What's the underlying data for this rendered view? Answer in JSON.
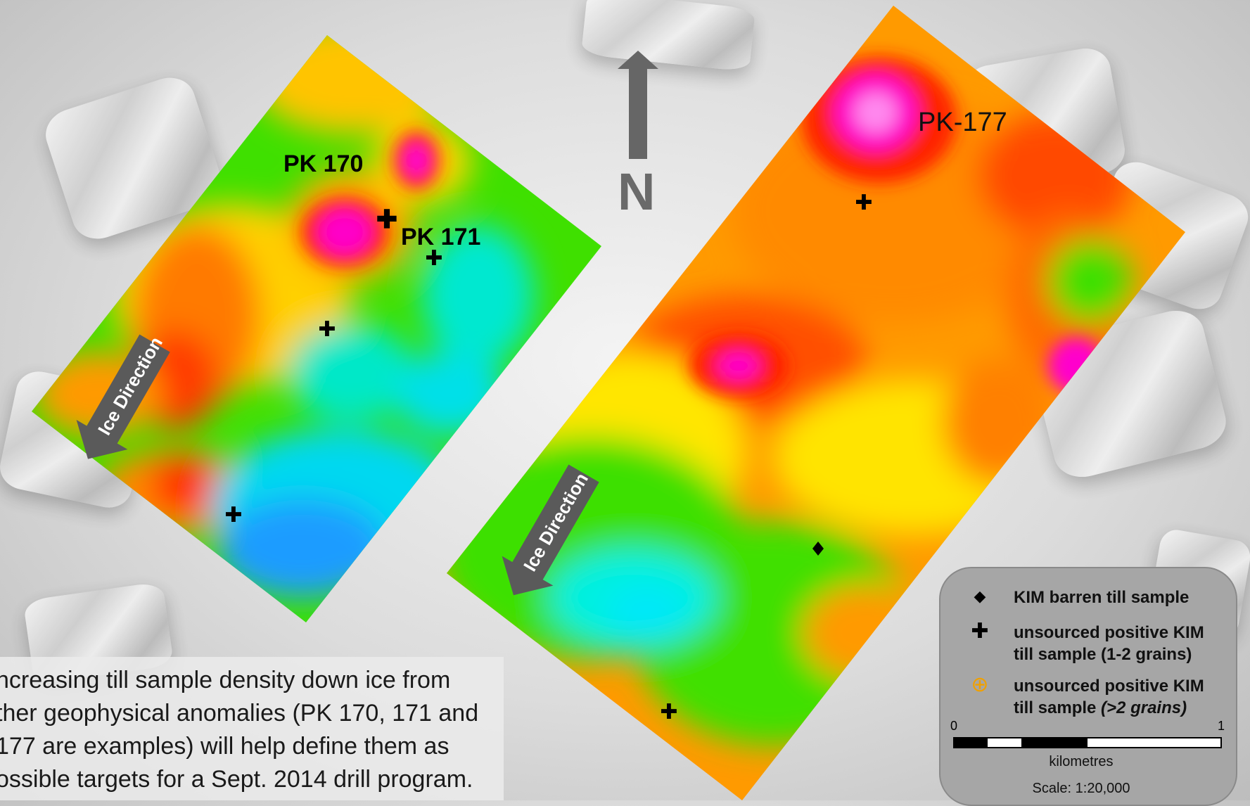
{
  "labels": {
    "pk170": "PK 170",
    "pk171": "PK 171",
    "pk177": "PK-177",
    "north": "N",
    "ice_direction": "Ice Direction"
  },
  "caption": {
    "lines": [
      "ncreasing  till sample density down ice from",
      "ther geophysical anomalies (PK 170, 171 and",
      " 177 are examples) will help define them as",
      "ossible targets for a Sept. 2014 drill program."
    ]
  },
  "legend": {
    "items": [
      {
        "symbol": "diamond-icon",
        "text_lines": [
          "KIM barren till sample"
        ]
      },
      {
        "symbol": "plus-icon",
        "text_lines": [
          "unsourced positive KIM",
          "till sample (1-2 grains)"
        ]
      },
      {
        "symbol": "circled-plus-icon",
        "text_lines": [
          "unsourced positive KIM",
          "till sample "
        ],
        "italic": "(>2 grains)"
      }
    ],
    "scale_min": "0",
    "scale_max": "1",
    "unit": "kilometres",
    "scale_text": "Scale: 1:20,000"
  },
  "colors": {
    "high": "#ff00cc",
    "red": "#ff2a00",
    "orange": "#ff8c00",
    "yellow": "#ffe600",
    "green": "#3ee000",
    "cyan": "#00f0e0",
    "blue": "#1f9bff",
    "symbol_orange": "#f0a000"
  }
}
